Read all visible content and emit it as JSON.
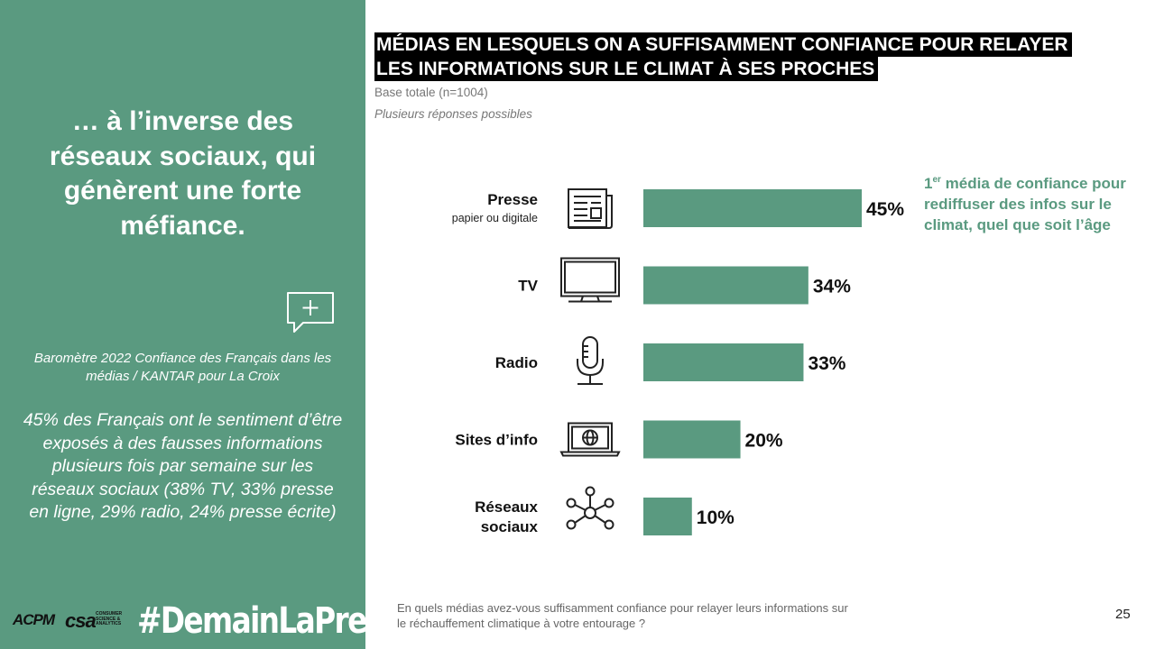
{
  "left_panel": {
    "headline": "… à l’inverse des réseaux sociaux, qui génèrent une forte méfiance.",
    "source": "Baromètre 2022 Confiance des Français dans les médias / KANTAR pour La Croix",
    "stat": "45% des Français ont le sentiment d’être exposés à des fausses informations plusieurs fois par semaine sur les réseaux sociaux (38% TV, 33% presse en ligne, 29% radio, 24% presse écrite)",
    "bubble_icon": "comment-plus-icon",
    "logos": {
      "acpm": "ACPM",
      "csa": "csa",
      "csa_sub": "CONSUMER SCIENCE & ANALYTICS",
      "hashtag": "#DemainLaPresse"
    },
    "background_color": "#5a9a80"
  },
  "title_line1": "MÉDIAS EN LESQUELS ON A SUFFISAMMENT CONFIANCE POUR RELAYER",
  "title_line2": "LES INFORMATIONS SUR LE CLIMAT À SES PROCHES",
  "base": "Base totale (n=1004)",
  "multi": "Plusieurs réponses possibles",
  "callout": {
    "sup_prefix": "1",
    "sup": "er",
    "text": " média de confiance pour rediffuser des infos sur le climat, quel que soit l’âge"
  },
  "question": "En quels médias avez-vous suffisamment confiance pour relayer leurs informations sur le réchauffement climatique à votre entourage ?",
  "page_number": "25",
  "chart_data": {
    "type": "bar",
    "orientation": "horizontal",
    "bar_color": "#5a9a80",
    "xlim": [
      0,
      45
    ],
    "categories": [
      {
        "label": "Presse",
        "sublabel": "papier ou digitale",
        "icon": "newspaper-icon"
      },
      {
        "label": "TV",
        "sublabel": "",
        "icon": "tv-icon"
      },
      {
        "label": "Radio",
        "sublabel": "",
        "icon": "microphone-icon"
      },
      {
        "label": "Sites d’info",
        "sublabel": "",
        "icon": "laptop-globe-icon"
      },
      {
        "label": "Réseaux\nsociaux",
        "sublabel": "",
        "icon": "network-icon"
      }
    ],
    "values": [
      45,
      34,
      33,
      20,
      10
    ],
    "value_labels": [
      "45%",
      "34%",
      "33%",
      "20%",
      "10%"
    ]
  }
}
